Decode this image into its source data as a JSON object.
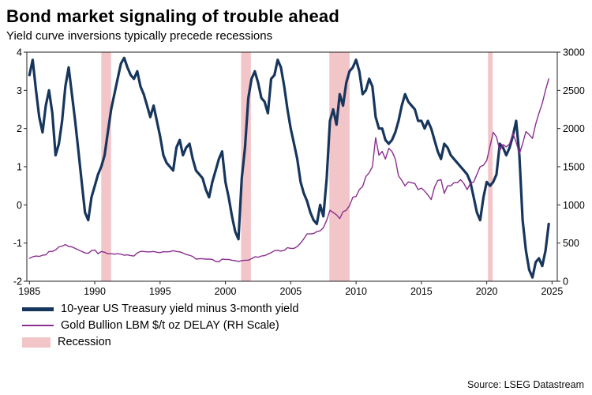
{
  "header": {
    "title": "Bond market signaling of trouble ahead",
    "subtitle": "Yield curve inversions typically precede recessions"
  },
  "footer": {
    "source": "Source: LSEG Datastream"
  },
  "legend": {
    "items": [
      {
        "label": "10-year US Treasury yield minus 3-month yield",
        "type": "line-thick",
        "color": "#17365d"
      },
      {
        "label": "Gold Bullion LBM $/t oz DELAY (RH Scale)",
        "type": "line-thin",
        "color": "#8b2f8f"
      },
      {
        "label": "Recession",
        "type": "band",
        "color": "#f2c5c9"
      }
    ]
  },
  "chart_data": {
    "type": "line",
    "title": "Bond market signaling of trouble ahead",
    "subtitle": "Yield curve inversions typically precede recessions",
    "x_ticks": [
      1985,
      1990,
      1995,
      2000,
      2005,
      2010,
      2015,
      2020,
      2025
    ],
    "left_axis": {
      "ticks": [
        -2,
        -1,
        0,
        1,
        2,
        3,
        4
      ],
      "range": [
        -2,
        4
      ]
    },
    "right_axis": {
      "ticks": [
        0,
        500,
        1000,
        1500,
        2000,
        2500,
        3000
      ],
      "range": [
        0,
        3000
      ]
    },
    "x_range": [
      1984.8,
      2025.4
    ],
    "grid": false,
    "legend_position": "bottom-left",
    "recession_color": "#f2c5c9",
    "recessions": [
      [
        1990.5,
        1991.25
      ],
      [
        2001.2,
        2001.95
      ],
      [
        2007.95,
        2009.5
      ],
      [
        2020.1,
        2020.45
      ]
    ],
    "x": [
      1985,
      1985.25,
      1985.5,
      1985.75,
      1986,
      1986.25,
      1986.5,
      1986.75,
      1987,
      1987.25,
      1987.5,
      1987.75,
      1988,
      1988.25,
      1988.5,
      1988.75,
      1989,
      1989.25,
      1989.5,
      1989.75,
      1990,
      1990.25,
      1990.5,
      1990.75,
      1991,
      1991.25,
      1991.5,
      1991.75,
      1992,
      1992.25,
      1992.5,
      1992.75,
      1993,
      1993.25,
      1993.5,
      1993.75,
      1994,
      1994.25,
      1994.5,
      1994.75,
      1995,
      1995.25,
      1995.5,
      1995.75,
      1996,
      1996.25,
      1996.5,
      1996.75,
      1997,
      1997.25,
      1997.5,
      1997.75,
      1998,
      1998.25,
      1998.5,
      1998.75,
      1999,
      1999.25,
      1999.5,
      1999.75,
      2000,
      2000.25,
      2000.5,
      2000.75,
      2001,
      2001.25,
      2001.5,
      2001.75,
      2002,
      2002.25,
      2002.5,
      2002.75,
      2003,
      2003.25,
      2003.5,
      2003.75,
      2004,
      2004.25,
      2004.5,
      2004.75,
      2005,
      2005.25,
      2005.5,
      2005.75,
      2006,
      2006.25,
      2006.5,
      2006.75,
      2007,
      2007.25,
      2007.5,
      2007.75,
      2008,
      2008.25,
      2008.5,
      2008.75,
      2009,
      2009.25,
      2009.5,
      2009.75,
      2010,
      2010.25,
      2010.5,
      2010.75,
      2011,
      2011.25,
      2011.5,
      2011.75,
      2012,
      2012.25,
      2012.5,
      2012.75,
      2013,
      2013.25,
      2013.5,
      2013.75,
      2014,
      2014.25,
      2014.5,
      2014.75,
      2015,
      2015.25,
      2015.5,
      2015.75,
      2016,
      2016.25,
      2016.5,
      2016.75,
      2017,
      2017.25,
      2017.5,
      2017.75,
      2018,
      2018.25,
      2018.5,
      2018.75,
      2019,
      2019.25,
      2019.5,
      2019.75,
      2020,
      2020.25,
      2020.5,
      2020.75,
      2021,
      2021.25,
      2021.5,
      2021.75,
      2022,
      2022.25,
      2022.5,
      2022.75,
      2023,
      2023.25,
      2023.5,
      2023.75,
      2024,
      2024.25,
      2024.5,
      2024.75
    ],
    "series": [
      {
        "name": "10-year US Treasury yield minus 3-month yield",
        "axis": "left",
        "color": "#17365d",
        "width": 3.2,
        "values": [
          3.4,
          3.8,
          3.0,
          2.3,
          1.9,
          2.6,
          3.0,
          2.4,
          1.3,
          1.6,
          2.2,
          3.1,
          3.6,
          2.9,
          2.2,
          1.4,
          0.6,
          -0.2,
          -0.4,
          0.2,
          0.5,
          0.8,
          1.0,
          1.3,
          1.9,
          2.5,
          2.9,
          3.3,
          3.7,
          3.85,
          3.6,
          3.4,
          3.3,
          3.5,
          3.1,
          2.9,
          2.6,
          2.3,
          2.6,
          2.2,
          1.8,
          1.3,
          1.1,
          1.0,
          0.9,
          1.5,
          1.7,
          1.3,
          1.5,
          1.6,
          1.2,
          0.9,
          0.8,
          0.7,
          0.4,
          0.2,
          0.6,
          0.9,
          1.2,
          1.4,
          0.6,
          0.2,
          -0.3,
          -0.7,
          -0.9,
          0.7,
          1.5,
          2.8,
          3.3,
          3.5,
          3.2,
          2.8,
          2.7,
          2.4,
          3.3,
          3.4,
          3.8,
          3.6,
          3.1,
          2.5,
          2.0,
          1.6,
          1.2,
          0.6,
          0.3,
          0.1,
          -0.2,
          -0.4,
          -0.5,
          0.0,
          -0.3,
          0.7,
          2.2,
          2.5,
          2.1,
          2.9,
          2.6,
          3.2,
          3.5,
          3.6,
          3.8,
          3.5,
          2.9,
          3.0,
          3.3,
          3.1,
          2.3,
          2.0,
          2.0,
          1.7,
          1.6,
          1.7,
          1.9,
          2.2,
          2.6,
          2.9,
          2.7,
          2.6,
          2.5,
          2.2,
          2.2,
          2.0,
          2.2,
          2.0,
          1.7,
          1.4,
          1.2,
          1.6,
          1.5,
          1.3,
          1.2,
          1.1,
          1.0,
          0.9,
          0.8,
          0.6,
          0.2,
          -0.2,
          -0.4,
          0.2,
          0.6,
          0.5,
          0.6,
          0.8,
          1.6,
          1.5,
          1.3,
          1.5,
          1.8,
          2.2,
          1.3,
          -0.4,
          -1.2,
          -1.7,
          -1.9,
          -1.5,
          -1.4,
          -1.6,
          -1.2,
          -0.5
        ]
      },
      {
        "name": "Gold Bullion LBM $/t oz DELAY (RH Scale)",
        "axis": "right",
        "color": "#8b2f8f",
        "width": 1.4,
        "values": [
          300,
          320,
          330,
          325,
          340,
          345,
          390,
          390,
          410,
          450,
          460,
          480,
          455,
          450,
          430,
          410,
          390,
          370,
          365,
          400,
          410,
          360,
          390,
          380,
          360,
          360,
          355,
          360,
          355,
          340,
          345,
          335,
          330,
          370,
          390,
          390,
          385,
          385,
          390,
          380,
          375,
          387,
          385,
          387,
          400,
          390,
          385,
          370,
          350,
          340,
          325,
          290,
          295,
          295,
          290,
          290,
          285,
          260,
          255,
          290,
          285,
          285,
          275,
          270,
          260,
          270,
          275,
          275,
          295,
          320,
          315,
          330,
          335,
          355,
          375,
          400,
          405,
          395,
          405,
          440,
          430,
          430,
          455,
          500,
          555,
          620,
          620,
          625,
          650,
          660,
          700,
          800,
          930,
          900,
          870,
          820,
          910,
          930,
          990,
          1100,
          1110,
          1200,
          1240,
          1370,
          1420,
          1500,
          1880,
          1650,
          1700,
          1600,
          1740,
          1700,
          1600,
          1380,
          1320,
          1250,
          1300,
          1290,
          1280,
          1200,
          1220,
          1180,
          1130,
          1070,
          1230,
          1320,
          1330,
          1150,
          1250,
          1250,
          1290,
          1290,
          1330,
          1280,
          1200,
          1280,
          1300,
          1400,
          1500,
          1520,
          1580,
          1770,
          1950,
          1890,
          1710,
          1790,
          1760,
          1800,
          1940,
          1820,
          1670,
          1800,
          1960,
          1920,
          1870,
          2060,
          2200,
          2330,
          2500,
          2650
        ]
      }
    ]
  }
}
